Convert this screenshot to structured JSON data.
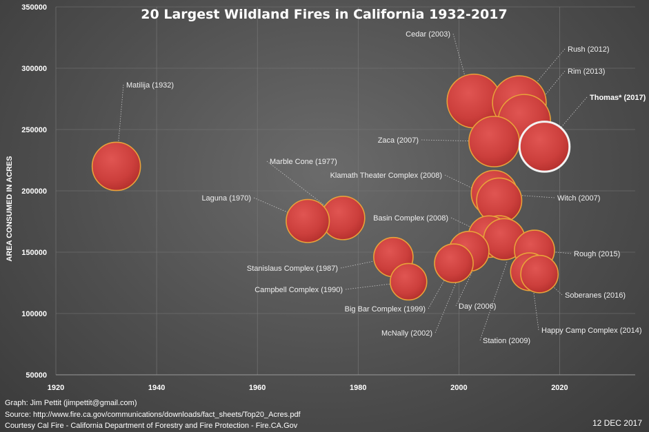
{
  "chart_data": {
    "type": "bubble",
    "title": "20 Largest Wildland Fires in California 1932-2017",
    "ylabel": "AREA CONSUMED IN ACRES",
    "xlabel": "",
    "xlim": [
      1920,
      2035
    ],
    "ylim": [
      50000,
      350000
    ],
    "xticks": [
      "1920",
      "1940",
      "1960",
      "1980",
      "2000",
      "2020"
    ],
    "yticks": [
      "50000",
      "100000",
      "150000",
      "200000",
      "250000",
      "300000",
      "350000"
    ],
    "grid": true,
    "points": [
      {
        "name": "Matilija (1932)",
        "x": 1932,
        "y": 220000
      },
      {
        "name": "Laguna (1970)",
        "x": 1970,
        "y": 175425
      },
      {
        "name": "Marble Cone (1977)",
        "x": 1977,
        "y": 177866
      },
      {
        "name": "Stanislaus Complex (1987)",
        "x": 1987,
        "y": 145980
      },
      {
        "name": "Campbell Complex (1990)",
        "x": 1990,
        "y": 125892
      },
      {
        "name": "Big Bar Complex (1999)",
        "x": 1999,
        "y": 140948
      },
      {
        "name": "McNally (2002)",
        "x": 2002,
        "y": 150696
      },
      {
        "name": "Cedar (2003)",
        "x": 2003,
        "y": 273246
      },
      {
        "name": "Day (2006)",
        "x": 2006,
        "y": 162702
      },
      {
        "name": "Zaca (2007)",
        "x": 2007,
        "y": 240207
      },
      {
        "name": "Witch (2007)",
        "x": 2007,
        "y": 197990
      },
      {
        "name": "Klamath Theater Complex (2008)",
        "x": 2008,
        "y": 192038
      },
      {
        "name": "Basin Complex (2008)",
        "x": 2008,
        "y": 162818
      },
      {
        "name": "Station (2009)",
        "x": 2009,
        "y": 160557
      },
      {
        "name": "Rush (2012)",
        "x": 2012,
        "y": 271911
      },
      {
        "name": "Rim (2013)",
        "x": 2013,
        "y": 257314
      },
      {
        "name": "Happy Camp Complex (2014)",
        "x": 2014,
        "y": 134056
      },
      {
        "name": "Rough (2015)",
        "x": 2015,
        "y": 151623
      },
      {
        "name": "Soberanes (2016)",
        "x": 2016,
        "y": 132127
      },
      {
        "name": "Thomas* (2017)",
        "x": 2017,
        "y": 236000,
        "highlight": true
      }
    ]
  },
  "footer": {
    "line1": "Graph: Jim Pettit (jimpettit@gmail.com)",
    "line2": "Source: http://www.fire.ca.gov/communications/downloads/fact_sheets/Top20_Acres.pdf",
    "line3": "Courtesy Cal Fire - California  Department of Forestry and Fire Protection - Fire.CA.Gov",
    "date": "12 DEC 2017"
  }
}
